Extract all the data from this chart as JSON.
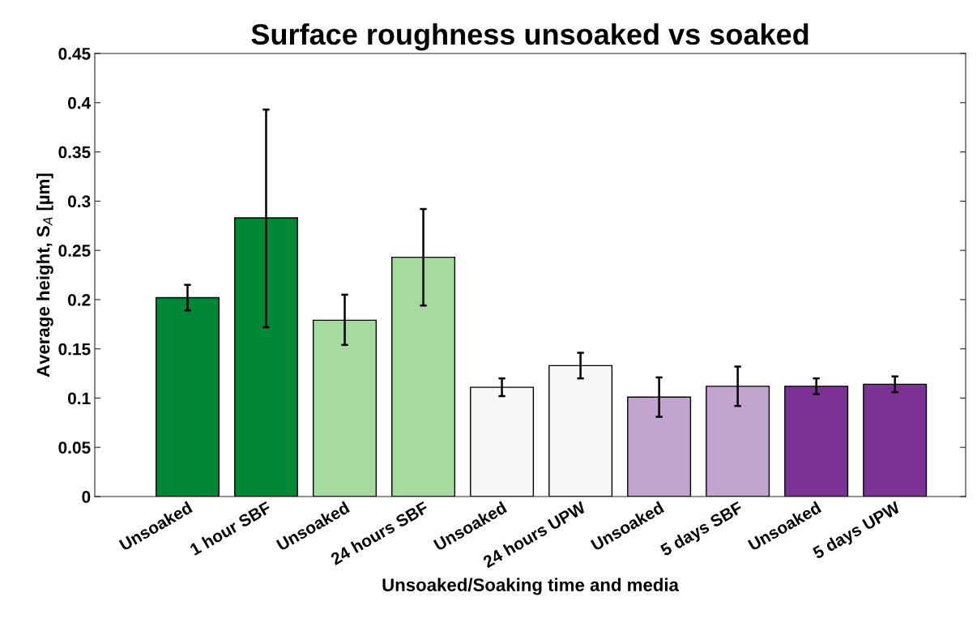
{
  "chart_data": {
    "type": "bar",
    "title": "Surface roughness unsoaked vs soaked",
    "xlabel": "Unsoaked/Soaking time and media",
    "ylabel": "Average height, S$_{A}$ [µm]",
    "categories": [
      "Unsoaked",
      "1 hour SBF",
      "Unsoaked",
      "24 hours SBF",
      "Unsoaked",
      "24 hours UPW",
      "Unsoaked",
      "5 days SBF",
      "Unsoaked",
      "5 days UPW"
    ],
    "values": [
      0.202,
      0.283,
      0.179,
      0.243,
      0.111,
      0.133,
      0.101,
      0.112,
      0.112,
      0.114
    ],
    "errors": [
      [
        0.189,
        0.215
      ],
      [
        0.172,
        0.393
      ],
      [
        0.154,
        0.205
      ],
      [
        0.194,
        0.292
      ],
      [
        0.102,
        0.12
      ],
      [
        0.12,
        0.146
      ],
      [
        0.081,
        0.121
      ],
      [
        0.092,
        0.132
      ],
      [
        0.104,
        0.12
      ],
      [
        0.106,
        0.122
      ]
    ],
    "colors": [
      "#008837",
      "#008837",
      "#a6dba0",
      "#a6dba0",
      "#f7f7f7",
      "#f7f7f7",
      "#c2a5cf",
      "#c2a5cf",
      "#7b3294",
      "#7b3294"
    ],
    "ylim": [
      0,
      0.45
    ],
    "yticks": [
      0,
      0.05,
      0.1,
      0.15,
      0.2,
      0.25,
      0.3,
      0.35,
      0.4,
      0.45
    ],
    "grid": false,
    "legend": false
  }
}
